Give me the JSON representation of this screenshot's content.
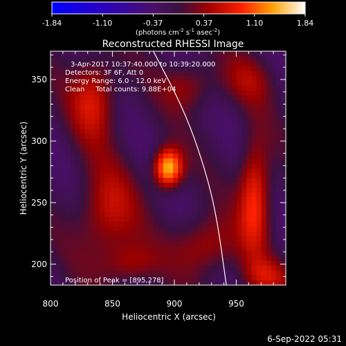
{
  "chart_data": {
    "type": "heatmap",
    "title": "Reconstructed RHESSI Image",
    "xlabel": "Heliocentric X (arcsec)",
    "ylabel": "Heliocentric Y (arcsec)",
    "xlim": [
      800,
      990
    ],
    "ylim": [
      183,
      373
    ],
    "x_ticks": [
      800,
      850,
      900,
      950
    ],
    "y_ticks": [
      200,
      250,
      300,
      350
    ],
    "colorbar": {
      "min": -1.84,
      "max": 1.84,
      "ticks": [
        "-1.84",
        "-1.10",
        "-0.37",
        "0.37",
        "1.10",
        "1.84"
      ],
      "label_parts": [
        "(photons cm",
        "-2",
        " s",
        "-1",
        " asec",
        "-2",
        ")"
      ]
    },
    "annotations": [
      "3-Apr-2017 10:37:40.000 to 10:39:20.000",
      "Detectors: 3F 6F, Att 0",
      "Energy Range: 6.0 - 12.0 keV",
      "Clean     Total counts: 9.88E+04"
    ],
    "peak_label": "Position of Peak = [895,278]",
    "peak": {
      "x": 895,
      "y": 278,
      "value": 1.84
    },
    "sources": [
      {
        "x": 895,
        "y": 278,
        "sx": 8,
        "sy": 11,
        "amp": 1.8
      },
      {
        "x": 965,
        "y": 255,
        "sx": 9,
        "sy": 32,
        "amp": 1.1
      },
      {
        "x": 835,
        "y": 335,
        "sx": 13,
        "sy": 24,
        "amp": 0.85
      },
      {
        "x": 845,
        "y": 240,
        "sx": 17,
        "sy": 28,
        "amp": 0.75
      },
      {
        "x": 925,
        "y": 215,
        "sx": 17,
        "sy": 17,
        "amp": 0.7
      },
      {
        "x": 912,
        "y": 345,
        "sx": 15,
        "sy": 14,
        "amp": 0.55
      },
      {
        "x": 975,
        "y": 190,
        "sx": 14,
        "sy": 10,
        "amp": 0.6
      },
      {
        "x": 865,
        "y": 200,
        "sx": 15,
        "sy": 12,
        "amp": 0.55
      },
      {
        "x": 960,
        "y": 350,
        "sx": 15,
        "sy": 15,
        "amp": 0.45
      }
    ],
    "limb_curve": [
      [
        883,
        373
      ],
      [
        908,
        325
      ],
      [
        924,
        280
      ],
      [
        934,
        240
      ],
      [
        942,
        183
      ]
    ],
    "grid": false,
    "colormap": "blue-purple-red-yellow-white"
  },
  "footer": {
    "date": "6-Sep-2022 05:31"
  }
}
